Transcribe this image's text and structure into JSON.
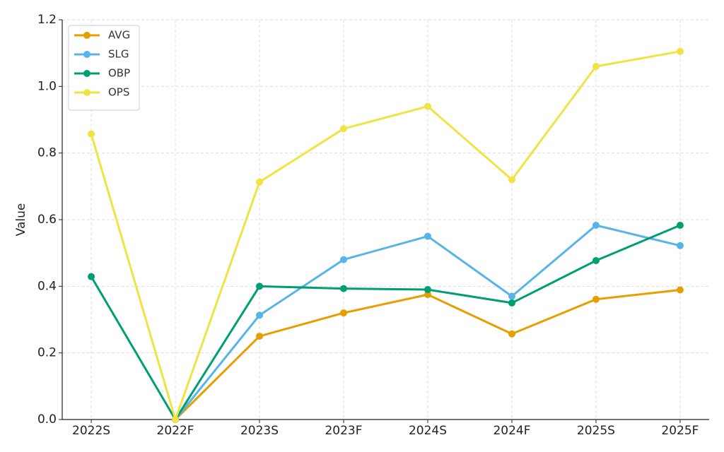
{
  "chart_data": {
    "type": "line",
    "categories": [
      "2022S",
      "2022F",
      "2023S",
      "2023F",
      "2024S",
      "2024F",
      "2025S",
      "2025F"
    ],
    "y_label": "Value",
    "series": [
      {
        "name": "AVG",
        "color": "#e69f00",
        "values": [
          null,
          0,
          0.25,
          0.32,
          0.375,
          0.257,
          0.361,
          0.389
        ]
      },
      {
        "name": "SLG",
        "color": "#56b4e9",
        "values": [
          null,
          0,
          0.313,
          0.48,
          0.55,
          0.37,
          0.583,
          0.522
        ]
      },
      {
        "name": "OBP",
        "color": "#009e73",
        "values": [
          0.429,
          0,
          0.4,
          0.393,
          0.39,
          0.35,
          0.477,
          0.583
        ]
      },
      {
        "name": "OPS",
        "color": "#f0e442",
        "values": [
          0.857,
          0,
          0.713,
          0.873,
          0.94,
          0.72,
          1.06,
          1.105
        ]
      }
    ],
    "ylim": [
      0,
      1.2
    ],
    "yticks": [
      {
        "value": 0,
        "label": "0.0"
      },
      0.2,
      0.4,
      0.6,
      0.8,
      {
        "value": 1,
        "label": "1.0"
      },
      1.2
    ],
    "grid": true,
    "legend": "upper-left"
  }
}
